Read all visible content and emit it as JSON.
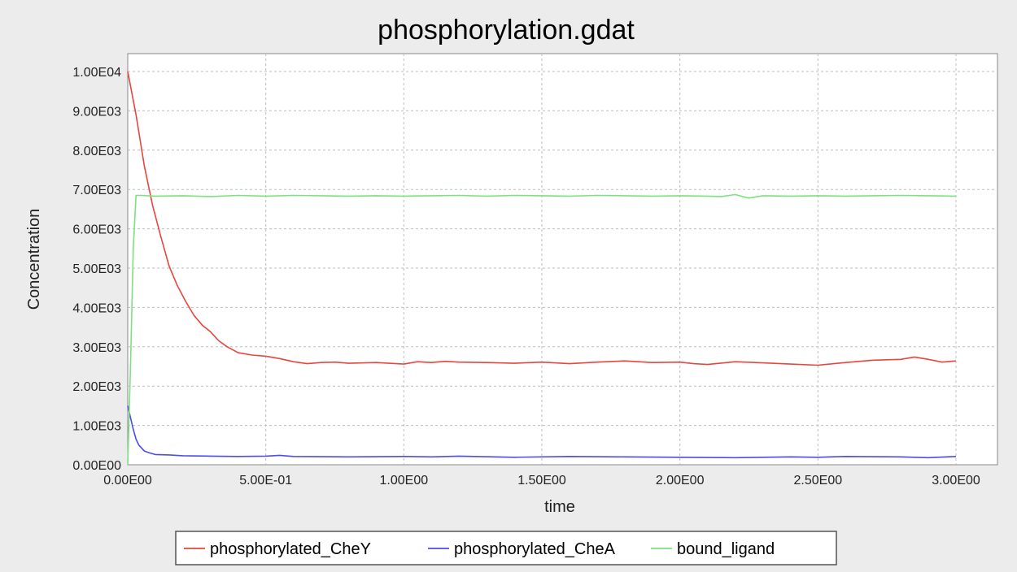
{
  "chart_data": {
    "type": "line",
    "title": "phosphorylation.gdat",
    "xlabel": "time",
    "ylabel": "Concentration",
    "xlim": [
      0,
      3
    ],
    "ylim": [
      0,
      10000
    ],
    "grid": true,
    "legend_position": "bottom",
    "x_ticks": [
      {
        "value": 0,
        "label": "0.00E00"
      },
      {
        "value": 0.5,
        "label": "5.00E-01"
      },
      {
        "value": 1.0,
        "label": "1.00E00"
      },
      {
        "value": 1.5,
        "label": "1.50E00"
      },
      {
        "value": 2.0,
        "label": "2.00E00"
      },
      {
        "value": 2.5,
        "label": "2.50E00"
      },
      {
        "value": 3.0,
        "label": "3.00E00"
      }
    ],
    "y_ticks": [
      {
        "value": 0,
        "label": "0.00E00"
      },
      {
        "value": 1000,
        "label": "1.00E03"
      },
      {
        "value": 2000,
        "label": "2.00E03"
      },
      {
        "value": 3000,
        "label": "3.00E03"
      },
      {
        "value": 4000,
        "label": "4.00E03"
      },
      {
        "value": 5000,
        "label": "5.00E03"
      },
      {
        "value": 6000,
        "label": "6.00E03"
      },
      {
        "value": 7000,
        "label": "7.00E03"
      },
      {
        "value": 8000,
        "label": "8.00E03"
      },
      {
        "value": 9000,
        "label": "9.00E03"
      },
      {
        "value": 10000,
        "label": "1.00E04"
      }
    ],
    "series": [
      {
        "name": "phosphorylated_CheY",
        "color": "#e8453c",
        "x": [
          0,
          0.03,
          0.06,
          0.09,
          0.12,
          0.15,
          0.18,
          0.21,
          0.24,
          0.27,
          0.3,
          0.33,
          0.36,
          0.4,
          0.45,
          0.5,
          0.55,
          0.6,
          0.65,
          0.7,
          0.75,
          0.8,
          0.9,
          1.0,
          1.05,
          1.1,
          1.15,
          1.2,
          1.3,
          1.4,
          1.5,
          1.6,
          1.7,
          1.8,
          1.9,
          2.0,
          2.05,
          2.1,
          2.2,
          2.3,
          2.4,
          2.5,
          2.6,
          2.7,
          2.8,
          2.85,
          2.9,
          2.95,
          3.0
        ],
        "y": [
          10000,
          8900,
          7600,
          6600,
          5800,
          5050,
          4550,
          4150,
          3800,
          3550,
          3380,
          3150,
          3000,
          2850,
          2790,
          2760,
          2700,
          2620,
          2570,
          2600,
          2610,
          2580,
          2600,
          2560,
          2620,
          2600,
          2630,
          2610,
          2600,
          2580,
          2610,
          2570,
          2610,
          2640,
          2600,
          2610,
          2570,
          2550,
          2620,
          2590,
          2560,
          2530,
          2600,
          2660,
          2680,
          2740,
          2680,
          2610,
          2640
        ]
      },
      {
        "name": "phosphorylated_CheA",
        "color": "#4b4bf0",
        "x": [
          0,
          0.01,
          0.02,
          0.03,
          0.04,
          0.06,
          0.08,
          0.1,
          0.15,
          0.2,
          0.3,
          0.4,
          0.5,
          0.55,
          0.6,
          0.8,
          1.0,
          1.1,
          1.2,
          1.4,
          1.6,
          1.8,
          2.0,
          2.2,
          2.4,
          2.5,
          2.6,
          2.8,
          2.9,
          3.0
        ],
        "y": [
          1500,
          1200,
          900,
          650,
          500,
          350,
          300,
          260,
          250,
          230,
          220,
          210,
          220,
          240,
          210,
          200,
          210,
          200,
          220,
          190,
          210,
          200,
          190,
          180,
          200,
          190,
          210,
          200,
          180,
          210
        ]
      },
      {
        "name": "bound_ligand",
        "color": "#7ee07e",
        "x": [
          0,
          0.01,
          0.02,
          0.03,
          0.05,
          0.1,
          0.2,
          0.3,
          0.4,
          0.5,
          0.6,
          0.7,
          0.8,
          0.9,
          1.0,
          1.1,
          1.2,
          1.3,
          1.4,
          1.5,
          1.6,
          1.7,
          1.8,
          1.9,
          2.0,
          2.1,
          2.15,
          2.2,
          2.25,
          2.3,
          2.4,
          2.5,
          2.6,
          2.7,
          2.8,
          2.9,
          3.0
        ],
        "y": [
          0,
          2500,
          5500,
          6850,
          6850,
          6830,
          6840,
          6820,
          6850,
          6830,
          6850,
          6840,
          6830,
          6840,
          6830,
          6840,
          6850,
          6830,
          6850,
          6840,
          6830,
          6850,
          6840,
          6830,
          6840,
          6830,
          6820,
          6870,
          6780,
          6840,
          6830,
          6840,
          6830,
          6840,
          6850,
          6840,
          6830
        ]
      }
    ]
  }
}
